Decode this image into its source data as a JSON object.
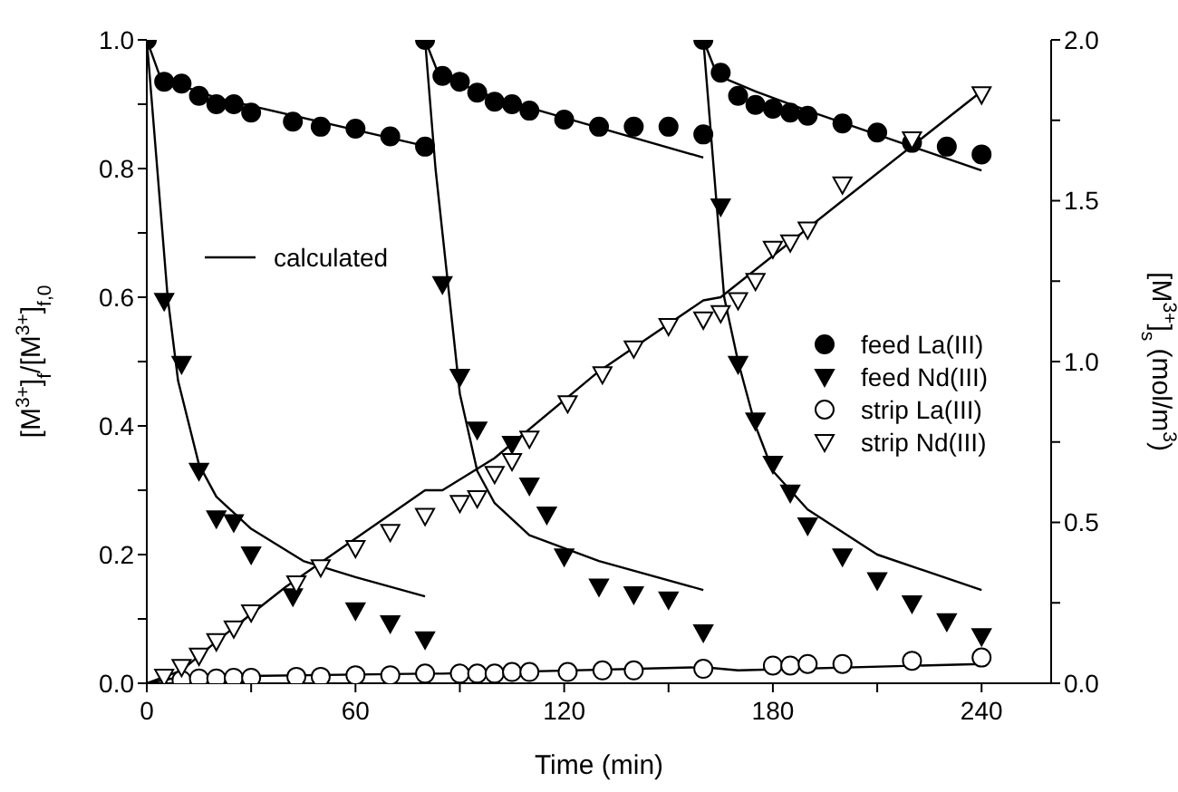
{
  "chart_data": {
    "type": "scatter",
    "xlabel": "Time (min)",
    "ylabel": "[M$^{3+}$]$_{f}$/[M$^{3+}$]$_{f,0}$",
    "y2label": "[M$^{3+}$]$_{s}$ (mol/m$^{3}$)",
    "xlim": [
      0,
      260
    ],
    "xticks": [
      0,
      {
        "value": 30,
        "label": null
      },
      60,
      {
        "value": 90,
        "label": null
      },
      120,
      {
        "value": 150,
        "label": null
      },
      180,
      {
        "value": 210,
        "label": null
      },
      240
    ],
    "ylim": [
      0,
      1
    ],
    "yticks": [
      {
        "value": 0,
        "label": "0.0"
      },
      {
        "value": 0.1,
        "label": null
      },
      0.2,
      {
        "value": 0.3,
        "label": null
      },
      0.4,
      {
        "value": 0.5,
        "label": null
      },
      0.6,
      {
        "value": 0.7,
        "label": null
      },
      0.8,
      {
        "value": 0.9,
        "label": null
      },
      {
        "value": 1,
        "label": "1.0"
      }
    ],
    "y2lim": [
      0,
      2
    ],
    "y2ticks": [
      {
        "value": 0,
        "label": "0.0"
      },
      {
        "value": 0.25,
        "label": null
      },
      0.5,
      {
        "value": 0.75,
        "label": null
      },
      {
        "value": 1,
        "label": "1.0"
      },
      {
        "value": 1.25,
        "label": null
      },
      1.5,
      {
        "value": 1.75,
        "label": null
      },
      {
        "value": 2,
        "label": "2.0"
      }
    ],
    "legend": "right",
    "line_style": "solid",
    "series": [
      {
        "name": "feed La(III)",
        "marker": "circle",
        "color": "#000000",
        "x": [
          0,
          5,
          10,
          15,
          20,
          25,
          30,
          42,
          50,
          60,
          70,
          80,
          80,
          85,
          90,
          95,
          100,
          105,
          110,
          120,
          130,
          140,
          150,
          160,
          160,
          165,
          170,
          175,
          180,
          185,
          190,
          200,
          210,
          220,
          230,
          240
        ],
        "values": [
          1.0,
          0.935,
          0.932,
          0.913,
          0.9,
          0.9,
          0.887,
          0.873,
          0.865,
          0.862,
          0.85,
          0.834,
          1.0,
          0.944,
          0.935,
          0.918,
          0.904,
          0.9,
          0.89,
          0.876,
          0.865,
          0.865,
          0.865,
          0.853,
          1.0,
          0.949,
          0.913,
          0.899,
          0.893,
          0.887,
          0.882,
          0.87,
          0.856,
          0.84,
          0.834,
          0.822
        ]
      },
      {
        "name": "feed Nd(III)",
        "marker": "triangle",
        "color": "#000000",
        "x": [
          5,
          10,
          15,
          20,
          25,
          30,
          42,
          60,
          70,
          80,
          85,
          90,
          95,
          105,
          110,
          115,
          120,
          130,
          140,
          150,
          160,
          165,
          170,
          175,
          180,
          185,
          190,
          200,
          210,
          220,
          230,
          240
        ],
        "values": [
          0.594,
          0.496,
          0.33,
          0.256,
          0.25,
          0.2,
          0.135,
          0.113,
          0.093,
          0.068,
          0.62,
          0.476,
          0.394,
          0.372,
          0.307,
          0.262,
          0.197,
          0.15,
          0.138,
          0.13,
          0.079,
          0.741,
          0.496,
          0.408,
          0.341,
          0.296,
          0.245,
          0.197,
          0.16,
          0.124,
          0.096,
          0.073
        ]
      },
      {
        "name": "strip La(III)",
        "marker": "circle",
        "axis": "y2",
        "color": "#000000",
        "x": [
          10,
          15,
          20,
          25,
          30,
          43,
          50,
          60,
          70,
          80,
          90,
          95,
          100,
          105,
          110,
          121,
          131,
          140,
          160,
          180,
          185,
          190,
          200,
          220,
          240
        ],
        "values": [
          0.01,
          0.015,
          0.015,
          0.017,
          0.017,
          0.02,
          0.02,
          0.025,
          0.025,
          0.03,
          0.03,
          0.03,
          0.03,
          0.035,
          0.035,
          0.035,
          0.04,
          0.04,
          0.045,
          0.055,
          0.055,
          0.06,
          0.06,
          0.07,
          0.08
        ]
      },
      {
        "name": "strip Nd(III)",
        "marker": "triangle",
        "axis": "y2",
        "color": "#000000",
        "x": [
          5,
          10,
          15,
          20,
          25,
          30,
          43,
          50,
          60,
          70,
          80,
          90,
          95,
          100,
          105,
          110,
          121,
          131,
          140,
          150,
          160,
          165,
          170,
          175,
          180,
          185,
          190,
          200,
          220,
          240
        ],
        "values": [
          0.02,
          0.05,
          0.085,
          0.13,
          0.17,
          0.22,
          0.31,
          0.36,
          0.42,
          0.47,
          0.52,
          0.56,
          0.575,
          0.65,
          0.69,
          0.76,
          0.87,
          0.96,
          1.04,
          1.11,
          1.13,
          1.15,
          1.19,
          1.25,
          1.35,
          1.37,
          1.41,
          1.55,
          1.69,
          1.83
        ]
      },
      {
        "name": "calculated",
        "type": "line",
        "color": "#000000",
        "x": [
          0,
          4,
          20,
          80
        ],
        "values": [
          1.0,
          0.94,
          0.91,
          0.835
        ]
      },
      {
        "type": "line",
        "color": "#000000",
        "x": [
          80,
          84,
          100,
          160
        ],
        "values": [
          1.0,
          0.945,
          0.91,
          0.817
        ]
      },
      {
        "type": "line",
        "color": "#000000",
        "x": [
          160,
          164,
          175,
          190,
          240
        ],
        "values": [
          1.0,
          0.945,
          0.92,
          0.89,
          0.797
        ]
      },
      {
        "type": "line",
        "color": "#000000",
        "x": [
          0,
          3,
          6,
          9,
          15,
          20,
          30,
          45,
          60,
          80
        ],
        "values": [
          1.0,
          0.8,
          0.6,
          0.47,
          0.34,
          0.29,
          0.24,
          0.19,
          0.165,
          0.135
        ]
      },
      {
        "type": "line",
        "color": "#000000",
        "x": [
          80,
          83,
          87,
          90,
          95,
          100,
          110,
          130,
          160
        ],
        "values": [
          1.0,
          0.8,
          0.6,
          0.45,
          0.33,
          0.28,
          0.23,
          0.19,
          0.145
        ]
      },
      {
        "type": "line",
        "color": "#000000",
        "x": [
          160,
          163,
          166,
          170,
          175,
          180,
          190,
          210,
          240
        ],
        "values": [
          1.0,
          0.8,
          0.6,
          0.5,
          0.4,
          0.33,
          0.27,
          0.2,
          0.145
        ]
      },
      {
        "type": "line",
        "axis": "y2",
        "color": "#000000",
        "x": [
          0,
          10,
          20,
          40,
          60,
          80,
          85,
          100,
          130,
          160,
          165,
          200,
          240
        ],
        "values": [
          0,
          0.04,
          0.13,
          0.3,
          0.45,
          0.6,
          0.6,
          0.7,
          0.97,
          1.19,
          1.2,
          1.5,
          1.84
        ]
      },
      {
        "type": "line",
        "axis": "y2",
        "color": "#000000",
        "x": [
          0,
          10,
          80,
          85,
          160,
          170,
          240
        ],
        "values": [
          0,
          0.02,
          0.03,
          0.03,
          0.05,
          0.04,
          0.06
        ]
      }
    ]
  }
}
